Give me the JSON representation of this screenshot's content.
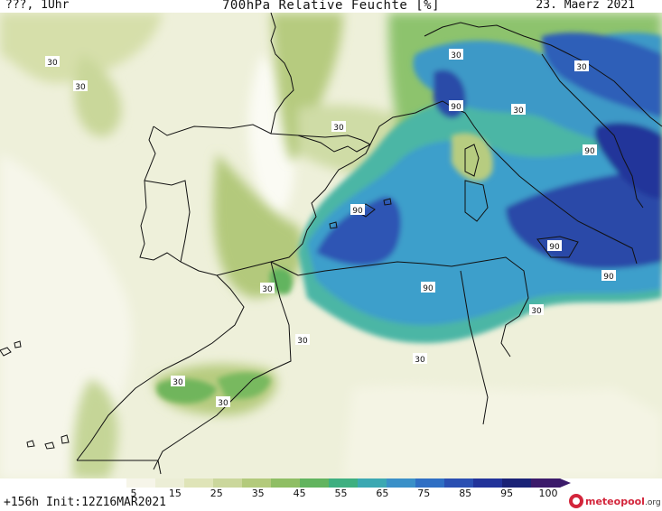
{
  "header": {
    "left": "???, 1Uhr",
    "title": "700hPa Relative Feuchte [%]",
    "date": "23. Maerz 2021"
  },
  "colorbar": {
    "ticks": [
      "5",
      "15",
      "25",
      "35",
      "45",
      "55",
      "65",
      "75",
      "85",
      "95",
      "100"
    ],
    "colors": [
      "#f6f5e9",
      "#eceed6",
      "#dfe4b8",
      "#cbd79c",
      "#b3ca7c",
      "#8fbe64",
      "#62b45f",
      "#3eaf80",
      "#3ba8b2",
      "#3a90c8",
      "#2f6fc4",
      "#2a4fb2",
      "#22339a",
      "#1a2276",
      "#3b1a6a"
    ]
  },
  "isolines": [
    {
      "label": "30",
      "name": "isoline-label-30-atlantic-north"
    },
    {
      "label": "30",
      "name": "isoline-label-30-atlantic-west"
    },
    {
      "label": "30",
      "name": "isoline-label-30-ligurian"
    },
    {
      "label": "30",
      "name": "isoline-label-30-alps"
    },
    {
      "label": "30",
      "name": "isoline-label-30-adriatic"
    },
    {
      "label": "30",
      "name": "isoline-label-30-pyrenees"
    },
    {
      "label": "90",
      "name": "isoline-label-90-tuscany"
    },
    {
      "label": "90",
      "name": "isoline-label-90-italy-south"
    },
    {
      "label": "90",
      "name": "isoline-label-90-balearic"
    },
    {
      "label": "90",
      "name": "isoline-label-90-sicily"
    },
    {
      "label": "90",
      "name": "isoline-label-90-ionian"
    },
    {
      "label": "90",
      "name": "isoline-label-90-algeria"
    },
    {
      "label": "30",
      "name": "isoline-label-30-strait"
    },
    {
      "label": "30",
      "name": "isoline-label-30-morocco"
    },
    {
      "label": "30",
      "name": "isoline-label-30-tunisia"
    },
    {
      "label": "30",
      "name": "isoline-label-30-sahara"
    },
    {
      "label": "30",
      "name": "isoline-label-30-atlas-west"
    },
    {
      "label": "30",
      "name": "isoline-label-30-atlas-east"
    }
  ],
  "footer": {
    "run": "+156h Init:12Z16MAR2021",
    "brand": "meteopool",
    "brand_tld": ".org"
  }
}
